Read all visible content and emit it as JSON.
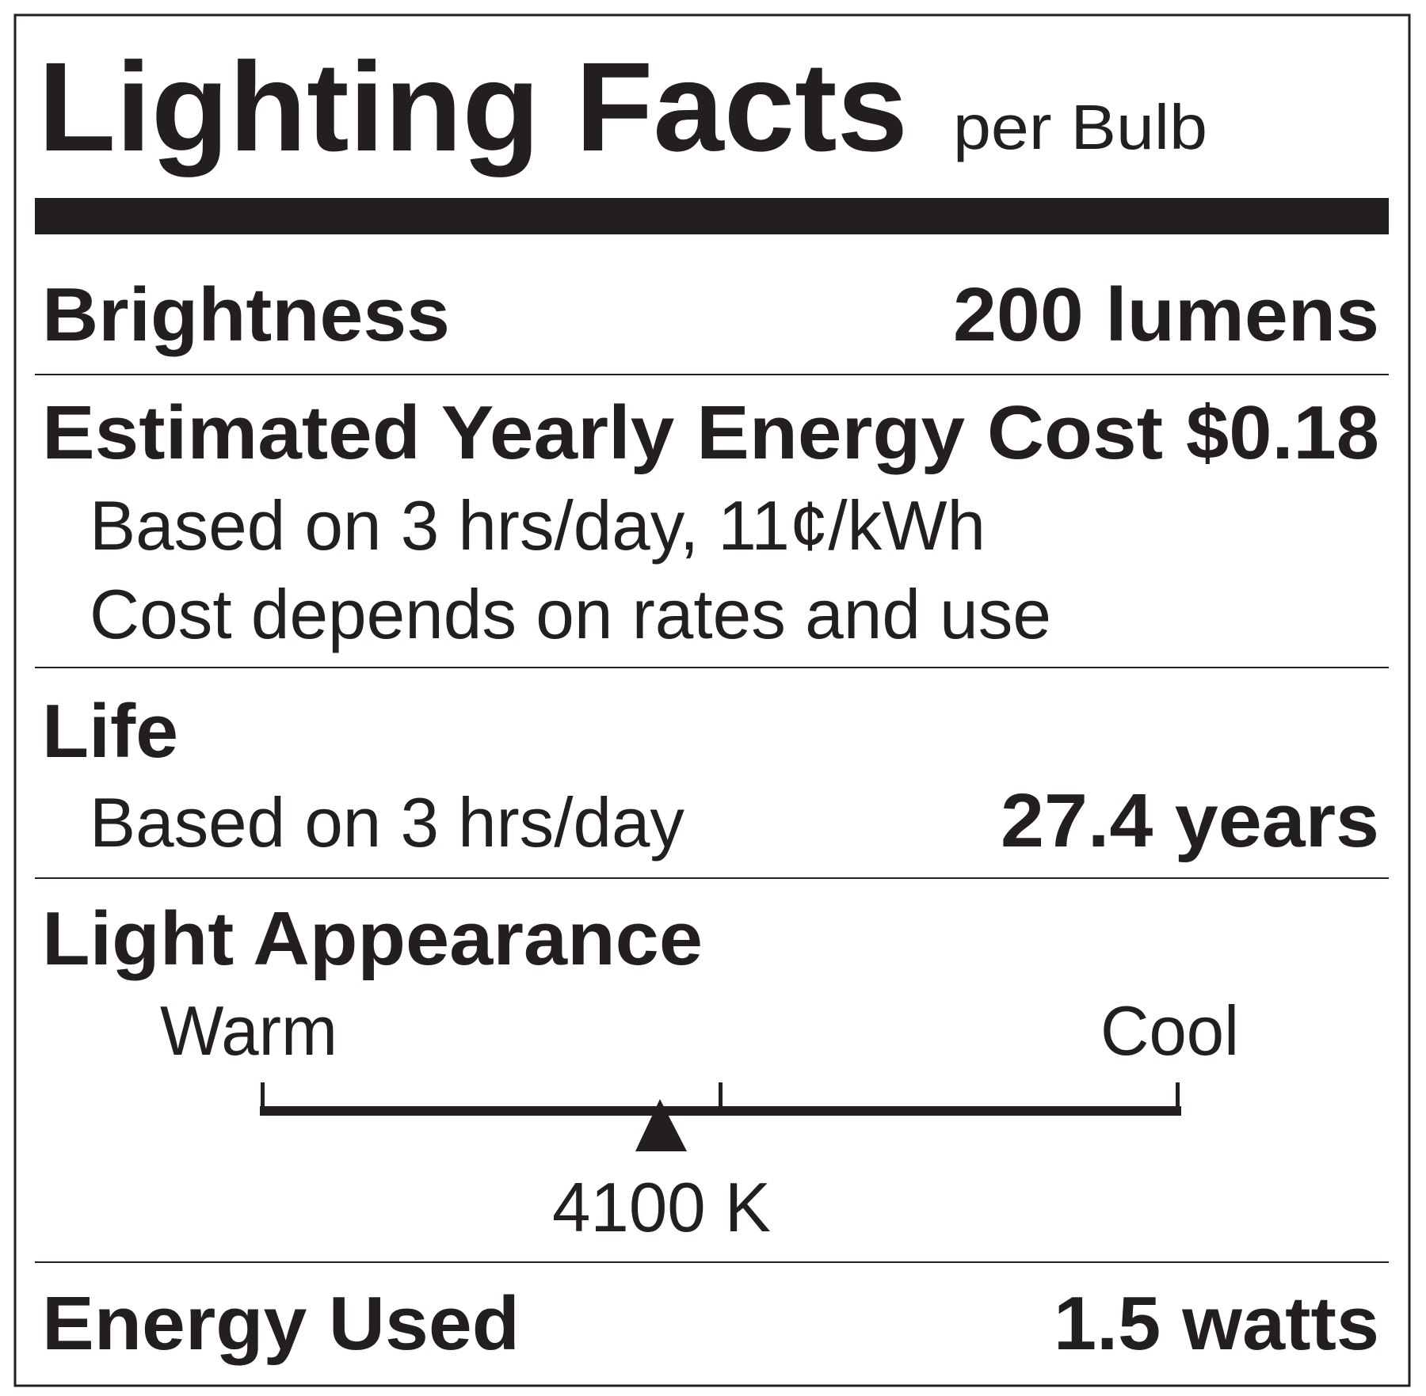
{
  "header": {
    "title": "Lighting Facts",
    "subtitle": "per Bulb"
  },
  "brightness": {
    "label": "Brightness",
    "value": "200 lumens"
  },
  "cost": {
    "label": "Estimated Yearly Energy Cost",
    "value": "$0.18",
    "note1": "Based on 3 hrs/day, 11¢/kWh",
    "note2": "Cost depends on rates and use"
  },
  "life": {
    "label": "Life",
    "note": "Based on 3 hrs/day",
    "value": "27.4 years"
  },
  "appearance": {
    "label": "Light Appearance",
    "warm": "Warm",
    "cool": "Cool",
    "value": "4100 K"
  },
  "energy": {
    "label": "Energy Used",
    "value": "1.5 watts"
  }
}
